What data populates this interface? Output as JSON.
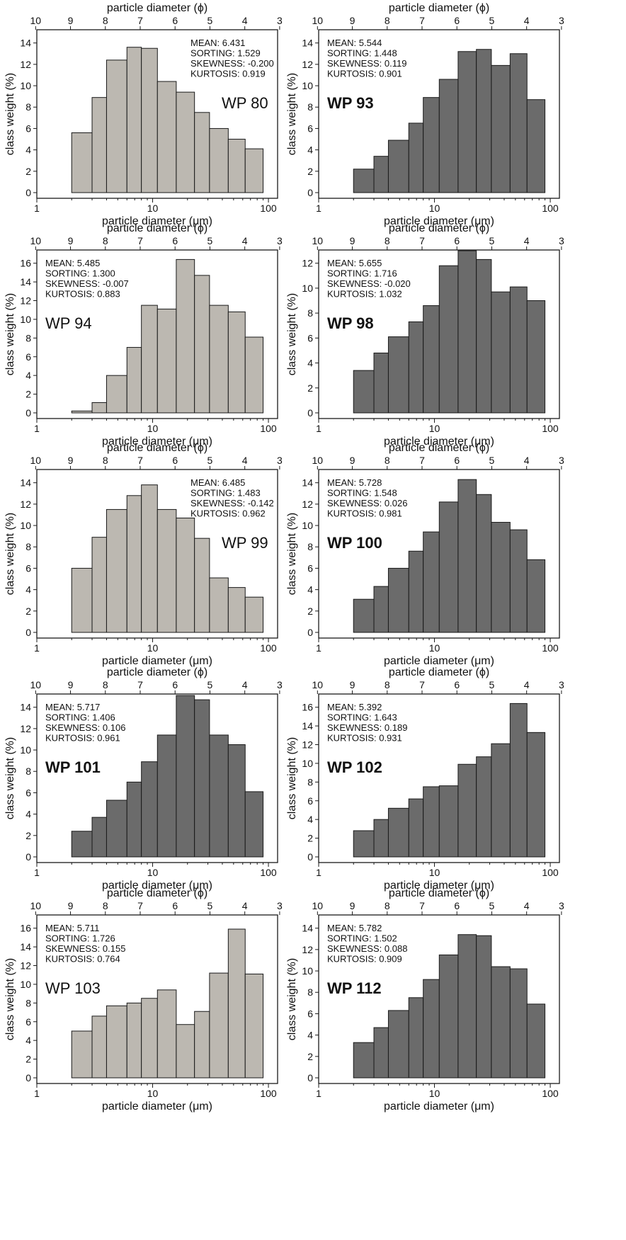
{
  "colors": {
    "light": "#bcb8b1",
    "dark": "#6b6b6b",
    "stroke": "#1a1a1a"
  },
  "chart_data": [
    {
      "type": "bar",
      "panel": "WP 80",
      "label_bold": false,
      "color": "light",
      "bins_um": [
        2,
        3,
        4,
        6,
        8,
        11,
        16,
        23,
        31,
        45,
        63,
        90
      ],
      "values": [
        5.6,
        8.9,
        12.4,
        13.6,
        13.5,
        10.4,
        9.4,
        7.5,
        6.0,
        5.0,
        4.1
      ],
      "ylim": [
        0,
        14
      ],
      "yticks": [
        0,
        2,
        4,
        6,
        8,
        10,
        12,
        14
      ],
      "stats": [
        "MEAN: 6.431",
        "SORTING: 1.529",
        "SKEWNESS: -0.200",
        "KURTOSIS: 0.919"
      ],
      "stats_pos": "top-right",
      "label_pos": "right"
    },
    {
      "type": "bar",
      "panel": "WP 93",
      "label_bold": true,
      "color": "dark",
      "bins_um": [
        2,
        3,
        4,
        6,
        8,
        11,
        16,
        23,
        31,
        45,
        63,
        90
      ],
      "values": [
        2.2,
        3.4,
        4.9,
        6.5,
        8.9,
        10.6,
        13.2,
        13.4,
        11.9,
        13.0,
        8.7
      ],
      "ylim": [
        0,
        14
      ],
      "yticks": [
        0,
        2,
        4,
        6,
        8,
        10,
        12,
        14
      ],
      "stats": [
        "MEAN: 5.544",
        "SORTING: 1.448",
        "SKEWNESS: 0.119",
        "KURTOSIS: 0.901"
      ],
      "stats_pos": "top-left",
      "label_pos": "left"
    },
    {
      "type": "bar",
      "panel": "WP 94",
      "label_bold": false,
      "color": "light",
      "bins_um": [
        2,
        3,
        4,
        6,
        8,
        11,
        16,
        23,
        31,
        45,
        63,
        90
      ],
      "values": [
        0.2,
        1.1,
        4.0,
        7.0,
        11.5,
        11.1,
        16.4,
        14.7,
        11.5,
        10.8,
        8.1
      ],
      "ylim": [
        0,
        16
      ],
      "yticks": [
        0,
        2,
        4,
        6,
        8,
        10,
        12,
        14,
        16
      ],
      "stats": [
        "MEAN: 5.485",
        "SORTING: 1.300",
        "SKEWNESS: -0.007",
        "KURTOSIS: 0.883"
      ],
      "stats_pos": "top-left",
      "label_pos": "left"
    },
    {
      "type": "bar",
      "panel": "WP 98",
      "label_bold": true,
      "color": "dark",
      "bins_um": [
        2,
        3,
        4,
        6,
        8,
        11,
        16,
        23,
        31,
        45,
        63,
        90
      ],
      "values": [
        3.4,
        4.8,
        6.1,
        7.3,
        8.6,
        11.8,
        13.0,
        12.3,
        9.7,
        10.1,
        9.0
      ],
      "ylim": [
        0,
        12
      ],
      "yticks": [
        0,
        2,
        4,
        6,
        8,
        10,
        12
      ],
      "stats": [
        "MEAN: 5.655",
        "SORTING: 1.716",
        "SKEWNESS: -0.020",
        "KURTOSIS: 1.032"
      ],
      "stats_pos": "top-left",
      "label_pos": "left"
    },
    {
      "type": "bar",
      "panel": "WP 99",
      "label_bold": false,
      "color": "light",
      "bins_um": [
        2,
        3,
        4,
        6,
        8,
        11,
        16,
        23,
        31,
        45,
        63,
        90
      ],
      "values": [
        6.0,
        8.9,
        11.5,
        12.8,
        13.8,
        11.5,
        10.7,
        8.8,
        5.1,
        4.2,
        3.3
      ],
      "ylim": [
        0,
        14
      ],
      "yticks": [
        0,
        2,
        4,
        6,
        8,
        10,
        12,
        14
      ],
      "stats": [
        "MEAN: 6.485",
        "SORTING: 1.483",
        "SKEWNESS: -0.142",
        "KURTOSIS: 0.962"
      ],
      "stats_pos": "top-right",
      "label_pos": "right"
    },
    {
      "type": "bar",
      "panel": "WP 100",
      "label_bold": true,
      "color": "dark",
      "bins_um": [
        2,
        3,
        4,
        6,
        8,
        11,
        16,
        23,
        31,
        45,
        63,
        90
      ],
      "values": [
        3.1,
        4.3,
        6.0,
        7.6,
        9.4,
        12.2,
        14.3,
        12.9,
        10.3,
        9.6,
        6.8
      ],
      "ylim": [
        0,
        14
      ],
      "yticks": [
        0,
        2,
        4,
        6,
        8,
        10,
        12,
        14
      ],
      "stats": [
        "MEAN: 5.728",
        "SORTING: 1.548",
        "SKEWNESS: 0.026",
        "KURTOSIS: 0.981"
      ],
      "stats_pos": "top-left",
      "label_pos": "left"
    },
    {
      "type": "bar",
      "panel": "WP 101",
      "label_bold": true,
      "color": "dark",
      "bins_um": [
        2,
        3,
        4,
        6,
        8,
        11,
        16,
        23,
        31,
        45,
        63,
        90
      ],
      "values": [
        2.4,
        3.7,
        5.3,
        7.0,
        8.9,
        11.4,
        15.1,
        14.7,
        11.4,
        10.5,
        6.1
      ],
      "ylim": [
        0,
        14
      ],
      "yticks": [
        0,
        2,
        4,
        6,
        8,
        10,
        12,
        14
      ],
      "stats": [
        "MEAN: 5.717",
        "SORTING: 1.406",
        "SKEWNESS: 0.106",
        "KURTOSIS: 0.961"
      ],
      "stats_pos": "top-left",
      "label_pos": "left"
    },
    {
      "type": "bar",
      "panel": "WP 102",
      "label_bold": true,
      "color": "dark",
      "bins_um": [
        2,
        3,
        4,
        6,
        8,
        11,
        16,
        23,
        31,
        45,
        63,
        90
      ],
      "values": [
        2.8,
        4.0,
        5.2,
        6.2,
        7.5,
        7.6,
        9.9,
        10.7,
        12.1,
        16.4,
        13.3
      ],
      "ylim": [
        0,
        16
      ],
      "yticks": [
        0,
        2,
        4,
        6,
        8,
        10,
        12,
        14,
        16
      ],
      "stats": [
        "MEAN: 5.392",
        "SORTING: 1.643",
        "SKEWNESS: 0.189",
        "KURTOSIS: 0.931"
      ],
      "stats_pos": "top-left",
      "label_pos": "left"
    },
    {
      "type": "bar",
      "panel": "WP 103",
      "label_bold": false,
      "color": "light",
      "bins_um": [
        2,
        3,
        4,
        6,
        8,
        11,
        16,
        23,
        31,
        45,
        63,
        90
      ],
      "values": [
        5.0,
        6.6,
        7.7,
        8.0,
        8.5,
        9.4,
        5.7,
        7.1,
        11.2,
        15.9,
        11.1
      ],
      "ylim": [
        0,
        16
      ],
      "yticks": [
        0,
        2,
        4,
        6,
        8,
        10,
        12,
        14,
        16
      ],
      "stats": [
        "MEAN: 5.711",
        "SORTING: 1.726",
        "SKEWNESS: 0.155",
        "KURTOSIS: 0.764"
      ],
      "stats_pos": "top-left",
      "label_pos": "left"
    },
    {
      "type": "bar",
      "panel": "WP 112",
      "label_bold": true,
      "color": "dark",
      "bins_um": [
        2,
        3,
        4,
        6,
        8,
        11,
        16,
        23,
        31,
        45,
        63,
        90
      ],
      "values": [
        3.3,
        4.7,
        6.3,
        7.5,
        9.2,
        11.5,
        13.4,
        13.3,
        10.4,
        10.2,
        6.9
      ],
      "ylim": [
        0,
        14
      ],
      "yticks": [
        0,
        2,
        4,
        6,
        8,
        10,
        12,
        14
      ],
      "stats": [
        "MEAN: 5.782",
        "SORTING: 1.502",
        "SKEWNESS: 0.088",
        "KURTOSIS: 0.909"
      ],
      "stats_pos": "top-left",
      "label_pos": "left"
    }
  ],
  "axes": {
    "xlabel": "particle diameter (μm)",
    "x2label": "particle diameter (ϕ)",
    "ylabel": "class weight (%)",
    "xlim_um": [
      1,
      120
    ],
    "xticks_um": [
      1,
      10,
      100
    ],
    "xtick_labels": [
      "1",
      "10",
      "100"
    ],
    "phi_ticks": [
      10,
      9,
      8,
      7,
      6,
      5,
      4,
      3
    ],
    "phi_tick_labels": [
      "10",
      "9",
      "8",
      "7",
      "6",
      "5",
      "4",
      "3"
    ]
  }
}
